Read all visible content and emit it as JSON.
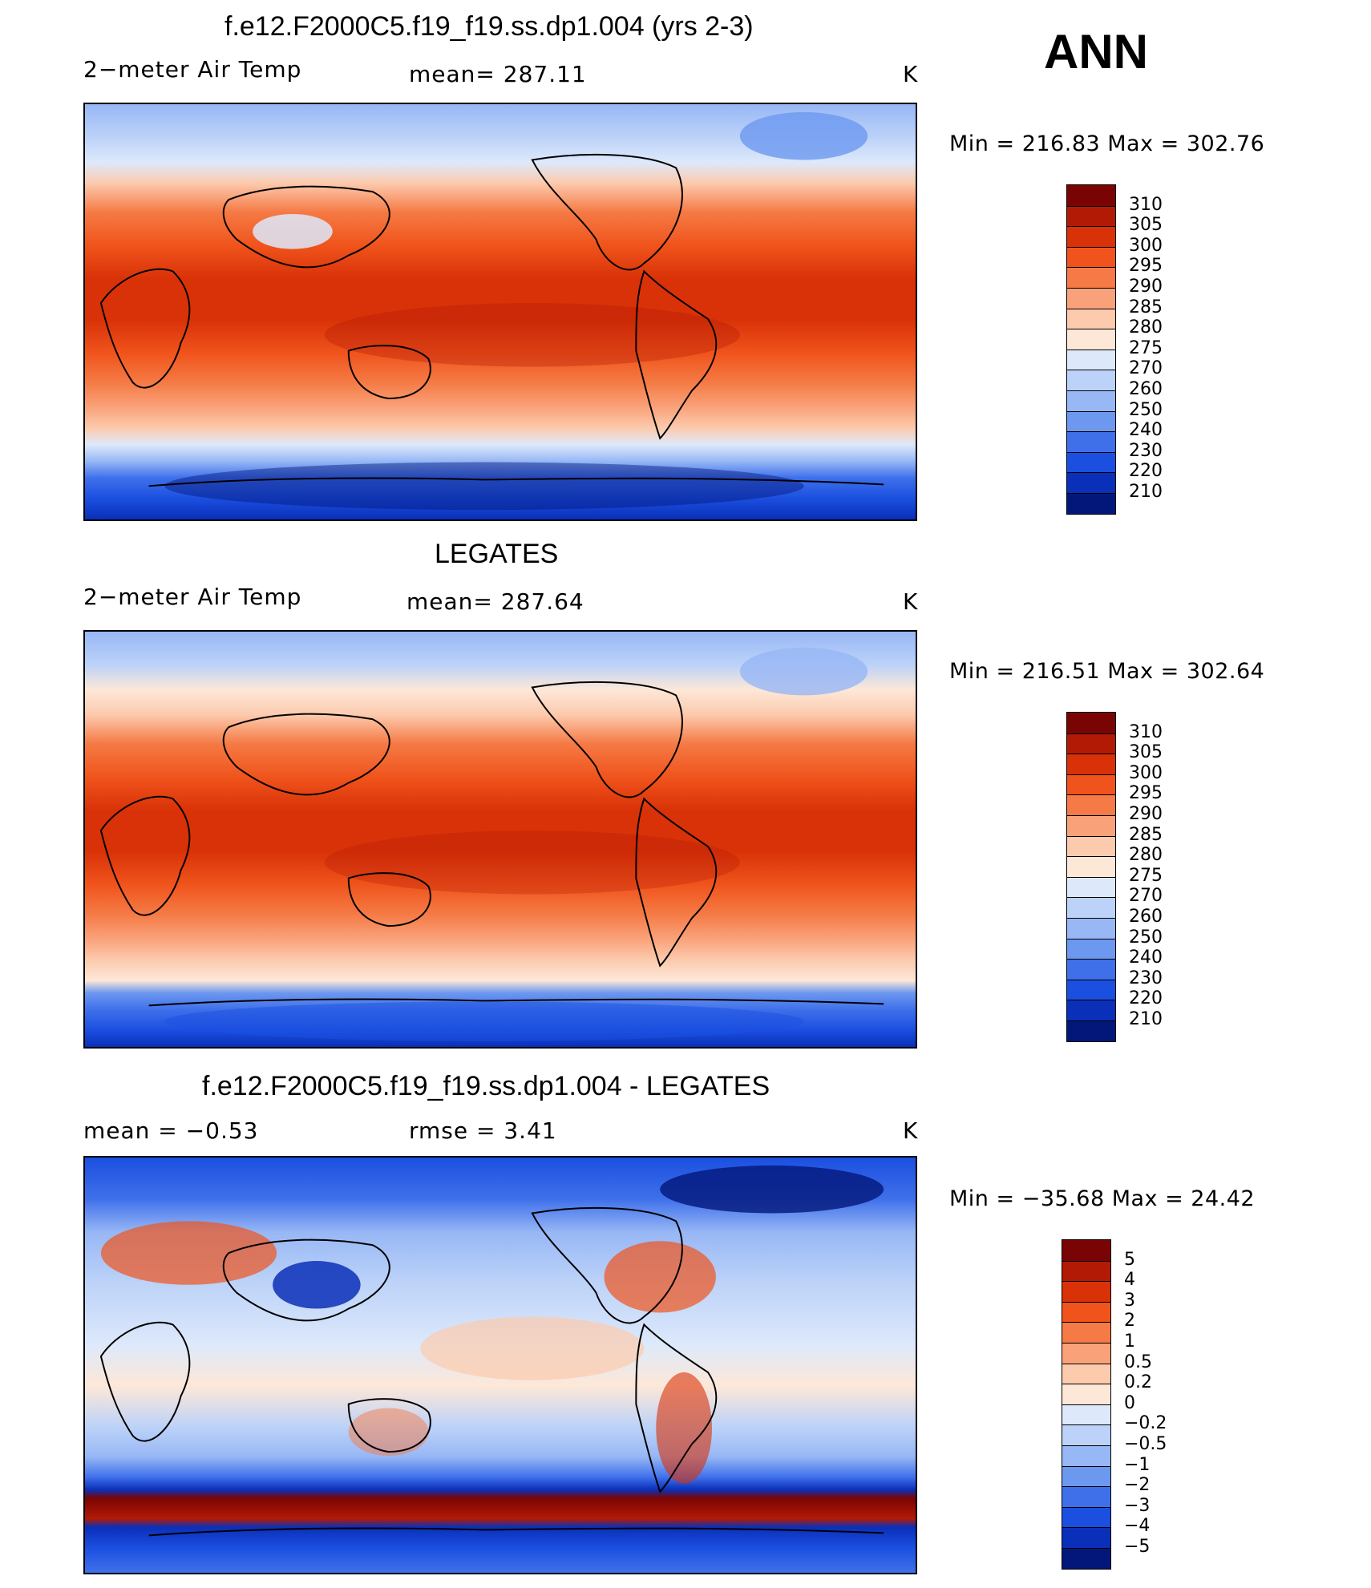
{
  "ann_label": "ANN",
  "panels": [
    {
      "title": "f.e12.F2000C5.f19_f19.ss.dp1.004 (yrs 2-3)",
      "left_label": "2−meter Air Temp",
      "center_label": "mean=  287.11",
      "units": "K",
      "minmax": "Min  =  216.83  Max  =  302.76",
      "legend": [
        "310",
        "305",
        "300",
        "295",
        "290",
        "285",
        "280",
        "275",
        "270",
        "260",
        "250",
        "240",
        "230",
        "220",
        "210"
      ]
    },
    {
      "title": "LEGATES",
      "left_label": "2−meter Air Temp",
      "center_label": "mean=  287.64",
      "units": "K",
      "minmax": "Min  =  216.51  Max  =  302.64",
      "legend": [
        "310",
        "305",
        "300",
        "295",
        "290",
        "285",
        "280",
        "275",
        "270",
        "260",
        "250",
        "240",
        "230",
        "220",
        "210"
      ]
    },
    {
      "title": "f.e12.F2000C5.f19_f19.ss.dp1.004 - LEGATES",
      "left_label": "mean  =    −0.53",
      "center_label": "rmse  =     3.41",
      "units": "K",
      "minmax": "Min  =  −35.68  Max  =    24.42",
      "legend": [
        "5",
        "4",
        "3",
        "2",
        "1",
        "0.5",
        "0.2",
        "0",
        "−0.2",
        "−0.5",
        "−1",
        "−2",
        "−3",
        "−4",
        "−5"
      ]
    }
  ],
  "colors": {
    "palette": [
      "#7a0403",
      "#b31a06",
      "#d93208",
      "#f0541c",
      "#f57a45",
      "#f9a27a",
      "#fccaad",
      "#fde8d8",
      "#dde9fb",
      "#bcd2f8",
      "#97b7f5",
      "#6d98f0",
      "#3f70ea",
      "#1b4fe0",
      "#0a2fb8",
      "#03177a"
    ],
    "outline": "#000000"
  }
}
